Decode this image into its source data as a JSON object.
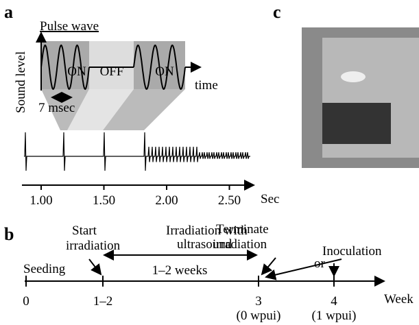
{
  "panel_a": {
    "label": "a",
    "title": "Pulse wave",
    "y_label": "Sound level",
    "x_label": "time",
    "segments": [
      "ON",
      "OFF",
      "ON"
    ],
    "period": "7 msec",
    "time_axis": {
      "ticks": [
        "1.00",
        "1.50",
        "2.00",
        "2.50"
      ],
      "unit": "Sec"
    }
  },
  "panel_b": {
    "label": "b",
    "seeding": "Seeding",
    "start": [
      "Start",
      "irradiation"
    ],
    "irradiation": [
      "Irradiation with",
      "ultrasound"
    ],
    "duration": "1–2 weeks",
    "terminate": [
      "Terminate",
      "irradiation"
    ],
    "inoculation": "Inoculation",
    "or": "or",
    "ticks": [
      "0",
      "1–2",
      "3",
      "4"
    ],
    "tick_notes": [
      "(0 wpui)",
      "(1 wpui)"
    ],
    "unit": "Week"
  },
  "panel_c": {
    "label": "c"
  }
}
